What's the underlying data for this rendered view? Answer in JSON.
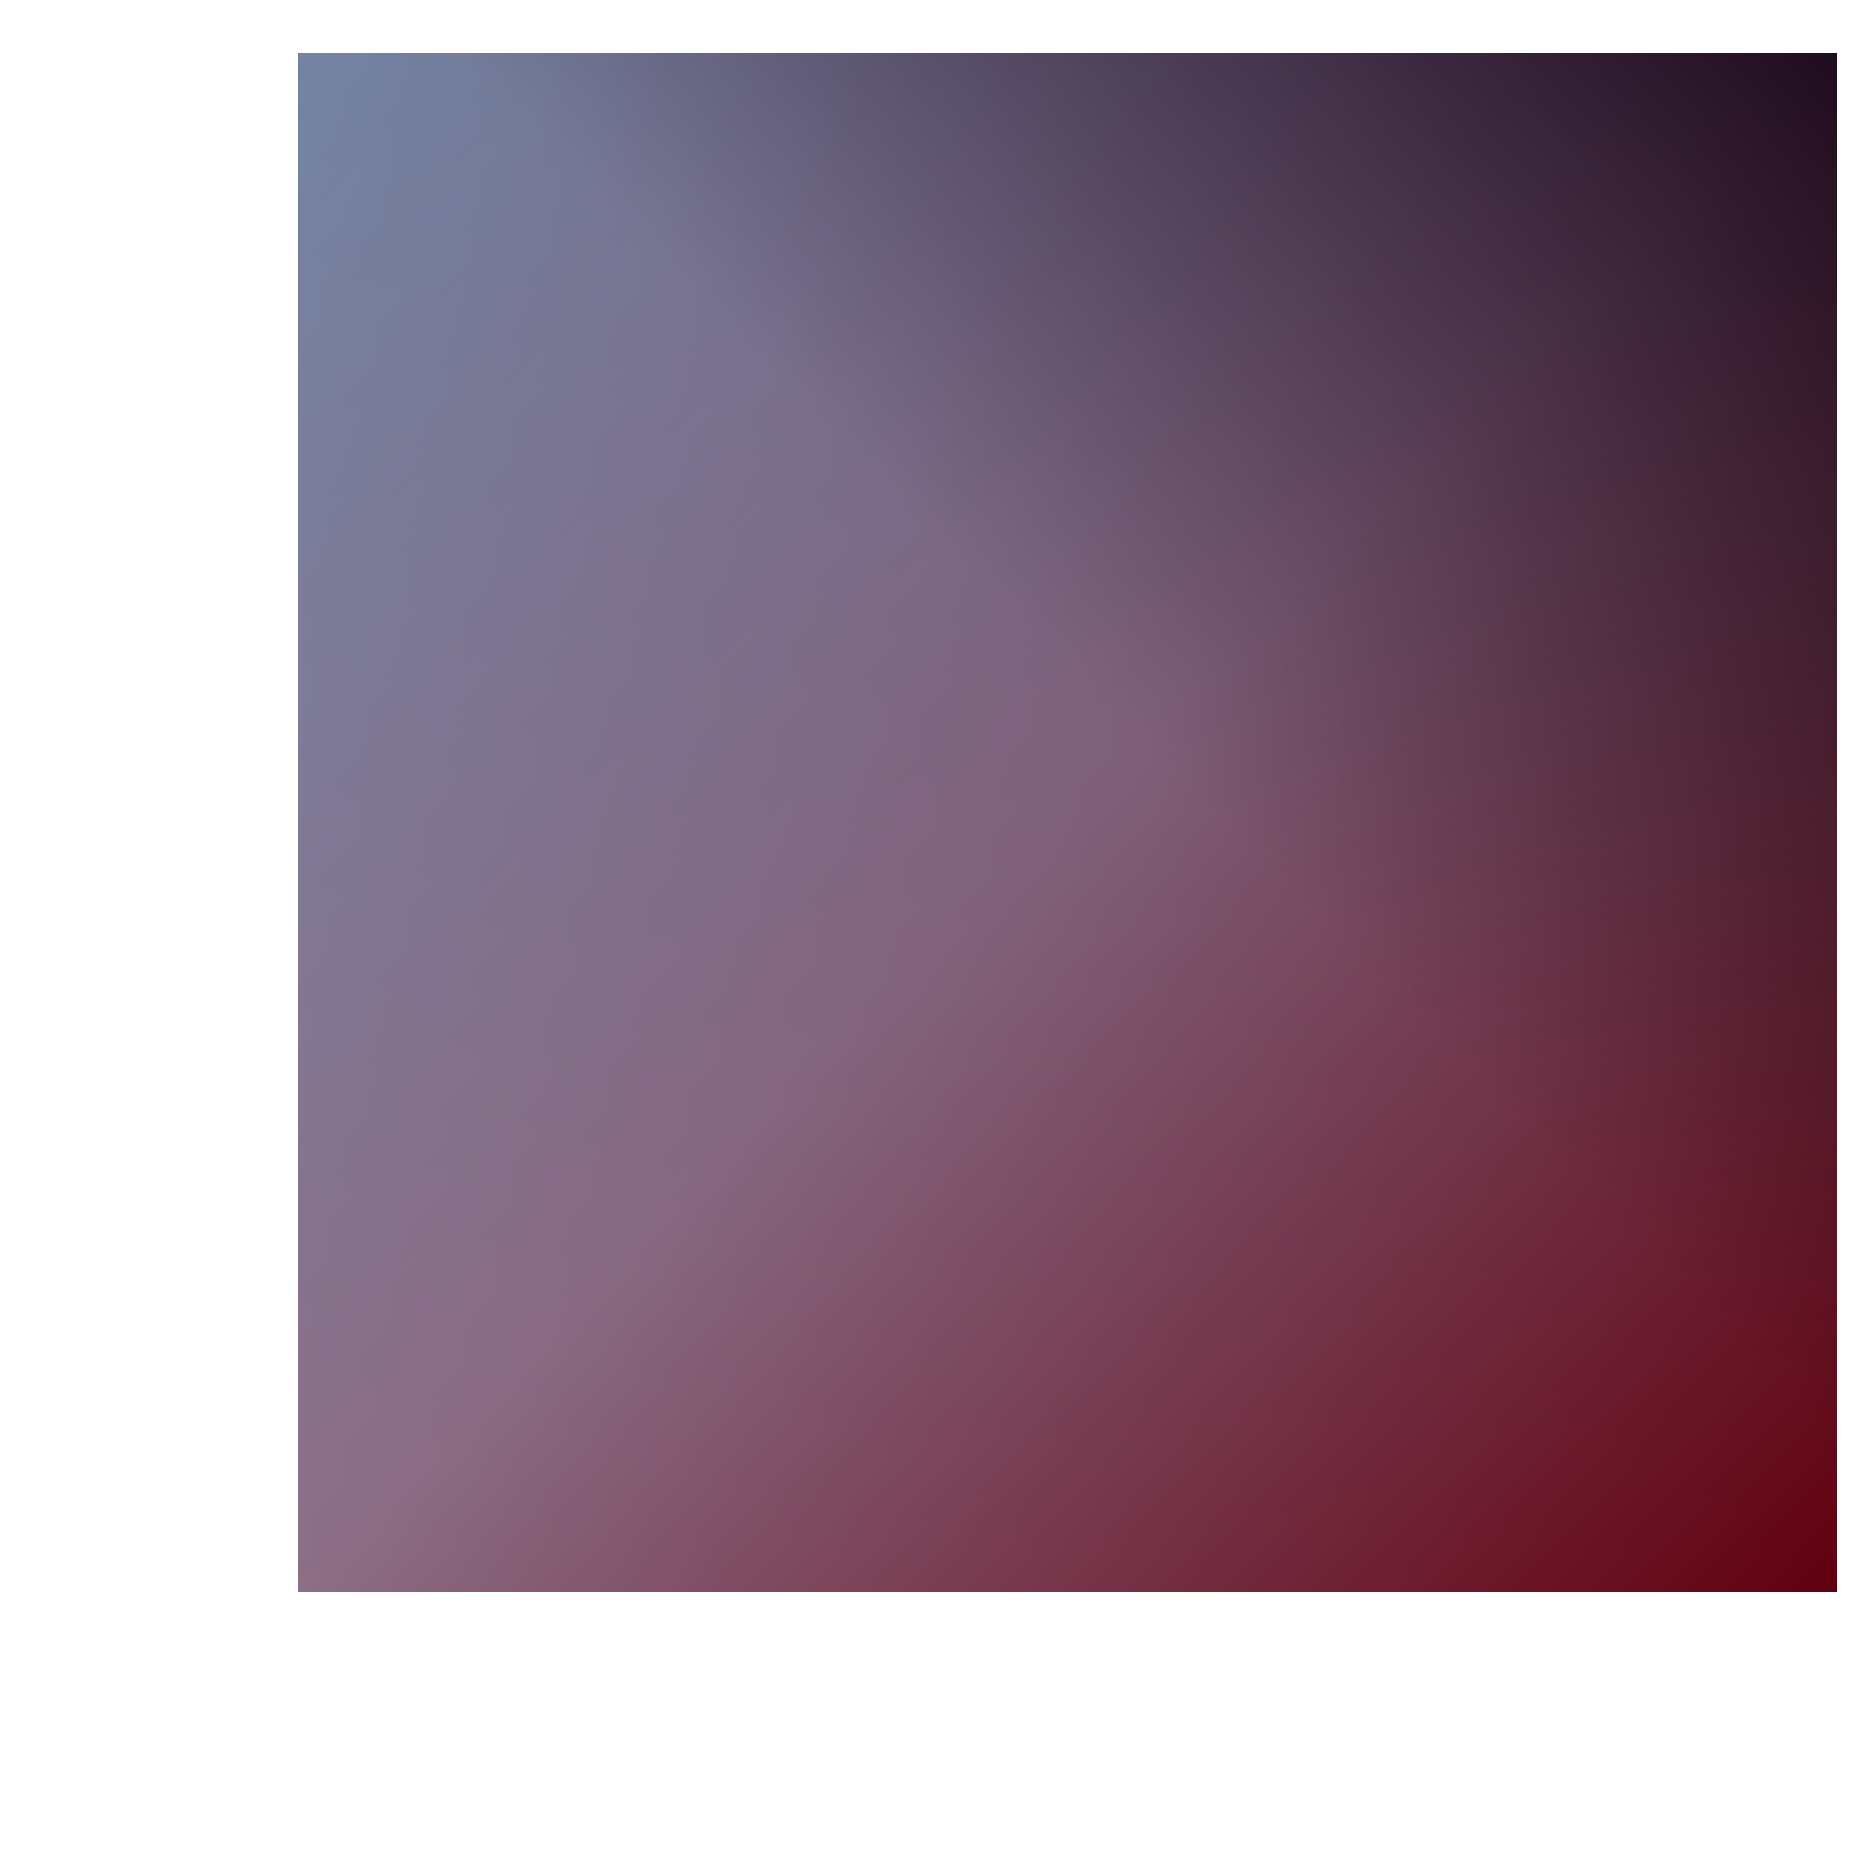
{
  "colors": {
    "page_background": "#ffffff",
    "top_left": "#7f95b3",
    "top_right": "#3a1b3a",
    "bottom_left": "#ffffff",
    "bottom_right": "#6b0010",
    "center": "#8c6e86"
  }
}
